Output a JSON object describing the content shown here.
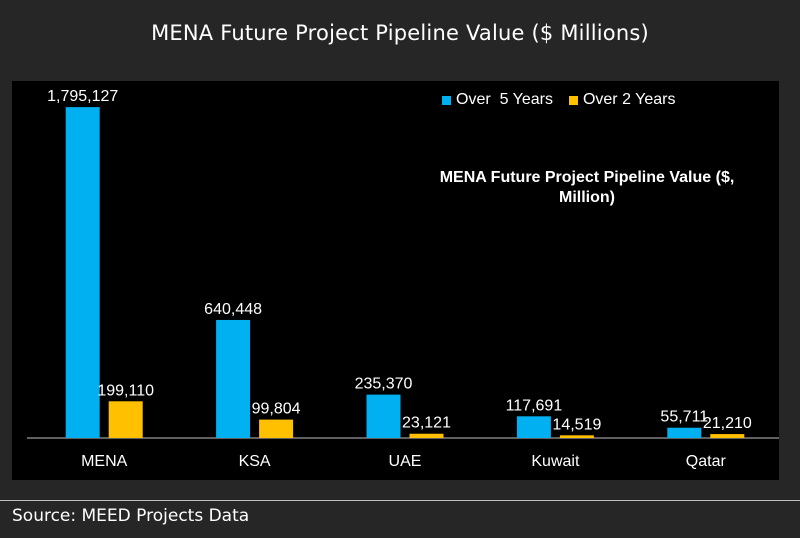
{
  "header": {
    "title": "MENA Future Project Pipeline Value ($ Millions)"
  },
  "chart_data": {
    "type": "bar",
    "title": "MENA Future Project Pipeline Value ($, Million)",
    "categories": [
      "MENA",
      "KSA",
      "UAE",
      "Kuwait",
      "Qatar"
    ],
    "series": [
      {
        "name": "Over  5 Years",
        "values": [
          1795127,
          640448,
          235370,
          117691,
          55711
        ],
        "labels": [
          "1,795,127",
          "640,448",
          "235,370",
          "117,691",
          "55,711"
        ],
        "color": "#00B0F0"
      },
      {
        "name": "Over 2 Years",
        "values": [
          199110,
          99804,
          23121,
          14519,
          21210
        ],
        "labels": [
          "199,110",
          "99,804",
          "23,121",
          "14,519",
          "21,210"
        ],
        "color": "#FFC000"
      }
    ],
    "ylim": [
      0,
      1850000
    ],
    "grid": false,
    "legend_position": "top-right"
  },
  "footer": {
    "source": "Source: MEED Projects Data"
  },
  "colors": {
    "background": "#262626",
    "plot_background": "#000000",
    "text": "#ffffff",
    "axis": "#bfbfbf"
  }
}
